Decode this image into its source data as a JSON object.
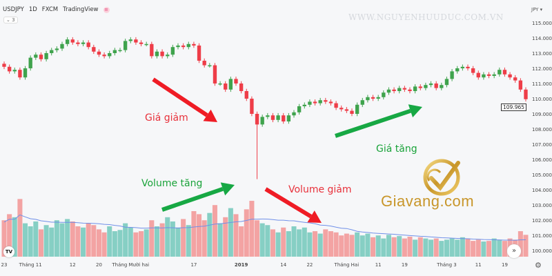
{
  "header": {
    "symbol": "USDJPY",
    "interval": "1D",
    "source": "FXCM",
    "platform": "TradingView",
    "collapse_label": "⌄ 3"
  },
  "watermark": "WWW.NGUYENHUUDUC.COM.VN",
  "currency_label": "JPY ▾",
  "last_price": "109.965",
  "annotations": {
    "price_down": "Giá giảm",
    "price_up": "Giá tăng",
    "volume_up": "Volume tăng",
    "volume_down": "Volume giảm"
  },
  "logo_text": "Giavang.com",
  "colors": {
    "up": "#3fa34d",
    "down": "#ee3d48",
    "vol_up": "#86cfc4",
    "vol_down": "#f3a3a3",
    "ma": "#6f8fe8",
    "arrow_red": "#ef1c25",
    "arrow_green": "#17a844"
  },
  "chart_data": {
    "type": "candlestick",
    "ylim": [
      100,
      115
    ],
    "y_ticks": [
      "115.000",
      "114.000",
      "113.000",
      "112.000",
      "111.000",
      "110.000",
      "109.000",
      "108.000",
      "107.000",
      "106.000",
      "105.000",
      "104.000",
      "103.000",
      "102.000",
      "101.000",
      "100.000"
    ],
    "x_ticks": [
      {
        "label": "23",
        "i": 0
      },
      {
        "label": "Tháng 11",
        "i": 5
      },
      {
        "label": "12",
        "i": 13
      },
      {
        "label": "20",
        "i": 18
      },
      {
        "label": "Tháng Mười hai",
        "i": 24
      },
      {
        "label": "17",
        "i": 36
      },
      {
        "label": "2019",
        "i": 45,
        "bold": true
      },
      {
        "label": "14",
        "i": 53
      },
      {
        "label": "22",
        "i": 58
      },
      {
        "label": "Tháng Hai",
        "i": 65
      },
      {
        "label": "11",
        "i": 71
      },
      {
        "label": "19",
        "i": 76
      },
      {
        "label": "Tháng 3",
        "i": 84
      },
      {
        "label": "11",
        "i": 90
      },
      {
        "label": "19",
        "i": 95
      }
    ],
    "first_open": 112.3,
    "close": [
      112.1,
      111.8,
      111.9,
      111.4,
      112.0,
      112.7,
      112.9,
      112.6,
      113.0,
      113.2,
      113.3,
      113.6,
      113.9,
      113.7,
      113.6,
      113.7,
      113.4,
      113.1,
      112.9,
      112.8,
      113.0,
      113.2,
      113.2,
      113.8,
      113.9,
      113.7,
      113.6,
      113.6,
      112.8,
      113.1,
      112.8,
      112.9,
      113.4,
      113.5,
      113.4,
      113.6,
      113.5,
      112.5,
      112.2,
      112.2,
      111.0,
      111.0,
      110.6,
      111.3,
      111.0,
      110.5,
      110.0,
      109.0,
      108.3,
      108.8,
      108.9,
      108.6,
      108.9,
      108.5,
      108.9,
      109.1,
      109.5,
      109.6,
      109.8,
      109.7,
      109.9,
      109.8,
      109.7,
      109.4,
      109.3,
      109.2,
      109.0,
      109.6,
      109.9,
      110.1,
      110.0,
      110.1,
      110.4,
      110.6,
      110.5,
      110.7,
      110.6,
      110.5,
      110.8,
      110.7,
      110.9,
      111.0,
      110.7,
      110.9,
      111.3,
      111.8,
      112.0,
      112.1,
      112.0,
      111.7,
      111.4,
      111.6,
      111.5,
      111.6,
      111.9,
      111.6,
      111.4,
      111.2,
      110.6,
      109.965
    ],
    "notable_low": {
      "index": 48,
      "value": 104.7
    },
    "volume": [
      60,
      70,
      65,
      95,
      55,
      50,
      58,
      45,
      52,
      48,
      60,
      55,
      62,
      58,
      50,
      48,
      55,
      52,
      45,
      40,
      50,
      42,
      44,
      55,
      48,
      40,
      42,
      45,
      60,
      50,
      55,
      65,
      58,
      48,
      62,
      52,
      75,
      70,
      60,
      72,
      85,
      55,
      65,
      80,
      70,
      50,
      78,
      92,
      60,
      55,
      52,
      45,
      40,
      48,
      42,
      50,
      45,
      48,
      40,
      42,
      38,
      45,
      42,
      40,
      35,
      38,
      36,
      40,
      35,
      38,
      32,
      35,
      30,
      36,
      32,
      34,
      30,
      33,
      28,
      32,
      30,
      28,
      30,
      26,
      28,
      30,
      28,
      32,
      30,
      26,
      28,
      25,
      26,
      30,
      28,
      26,
      30,
      28,
      42,
      36
    ]
  }
}
